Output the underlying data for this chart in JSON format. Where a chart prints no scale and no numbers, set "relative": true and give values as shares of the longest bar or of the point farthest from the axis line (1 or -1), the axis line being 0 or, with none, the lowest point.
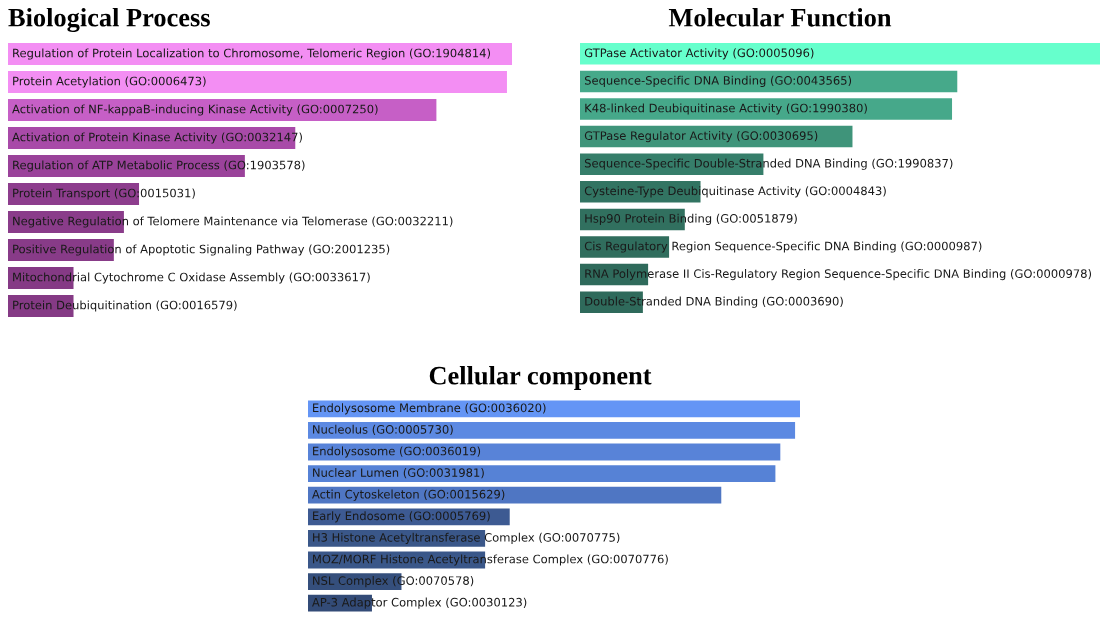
{
  "chart_data": [
    {
      "type": "bar",
      "orientation": "horizontal",
      "relative": true,
      "title": "Biological Process",
      "categories": [
        "Regulation of Protein Localization to Chromosome, Telomeric Region (GO:1904814)",
        "Protein Acetylation (GO:0006473)",
        "Activation of NF-kappaB-inducing Kinase Activity (GO:0007250)",
        "Activation of Protein Kinase Activity (GO:0032147)",
        "Regulation of ATP Metabolic Process (GO:1903578)",
        "Protein Transport (GO:0015031)",
        "Negative Regulation of Telomere Maintenance via Telomerase (GO:0032211)",
        "Positive Regulation of Apoptotic Signaling Pathway (GO:2001235)",
        "Mitochondrial Cytochrome C Oxidase Assembly (GO:0033617)",
        "Protein Deubiquitination (GO:0016579)"
      ],
      "values": [
        1,
        0.99,
        0.85,
        0.57,
        0.47,
        0.26,
        0.23,
        0.21,
        0.13,
        0.13
      ],
      "colors": [
        "#f38ef3",
        "#f38ef3",
        "#c65fc6",
        "#a84aa8",
        "#9a429a",
        "#8d3d8d",
        "#8a3c8a",
        "#883b88",
        "#853a85",
        "#853a85"
      ]
    },
    {
      "type": "bar",
      "orientation": "horizontal",
      "relative": true,
      "title": "Molecular Function",
      "categories": [
        "GTPase Activator Activity (GO:0005096)",
        "Sequence-Specific DNA Binding (GO:0043565)",
        "K48-linked Deubiquitinase Activity (GO:1990380)",
        "GTPase Regulator Activity (GO:0030695)",
        "Sequence-Specific Double-Stranded DNA Binding (GO:1990837)",
        "Cysteine-Type Deubiquitinase Activity (GO:0004843)",
        "Hsp90 Protein Binding (GO:0051879)",
        "Cis Regulatory Region Sequence-Specific DNA Binding (GO:0000987)",
        "RNA Polymerase II Cis-Regulatory Region Sequence-Specific DNA Binding (GO:0000978)",
        "Double-Stranded DNA Binding (GO:0003690)"
      ],
      "values": [
        1,
        0.72,
        0.71,
        0.52,
        0.35,
        0.23,
        0.2,
        0.17,
        0.13,
        0.12
      ],
      "colors": [
        "#66ffcc",
        "#46a98a",
        "#46a88a",
        "#3f947a",
        "#367e6a",
        "#327462",
        "#31705f",
        "#306d5d",
        "#2f6a5b",
        "#2f6a5b"
      ]
    },
    {
      "type": "bar",
      "orientation": "horizontal",
      "relative": true,
      "title": "Cellular component",
      "categories": [
        "Endolysosome Membrane (GO:0036020)",
        "Nucleolus (GO:0005730)",
        "Endolysosome (GO:0036019)",
        "Nuclear Lumen (GO:0031981)",
        "Actin Cytoskeleton (GO:0015629)",
        "Early Endosome (GO:0005769)",
        "H3 Histone Acetyltransferase Complex (GO:0070775)",
        "MOZ/MORF Histone Acetyltransferase Complex (GO:0070776)",
        "NSL Complex (GO:0070578)",
        "AP-3 Adaptor Complex (GO:0030123)"
      ],
      "values": [
        1,
        0.99,
        0.96,
        0.95,
        0.84,
        0.41,
        0.36,
        0.36,
        0.19,
        0.13
      ],
      "colors": [
        "#6495f5",
        "#5c89e2",
        "#5883d8",
        "#5682d6",
        "#4f76c3",
        "#3d5a92",
        "#3a5789",
        "#3a5789",
        "#354f7c",
        "#334b77"
      ]
    }
  ]
}
